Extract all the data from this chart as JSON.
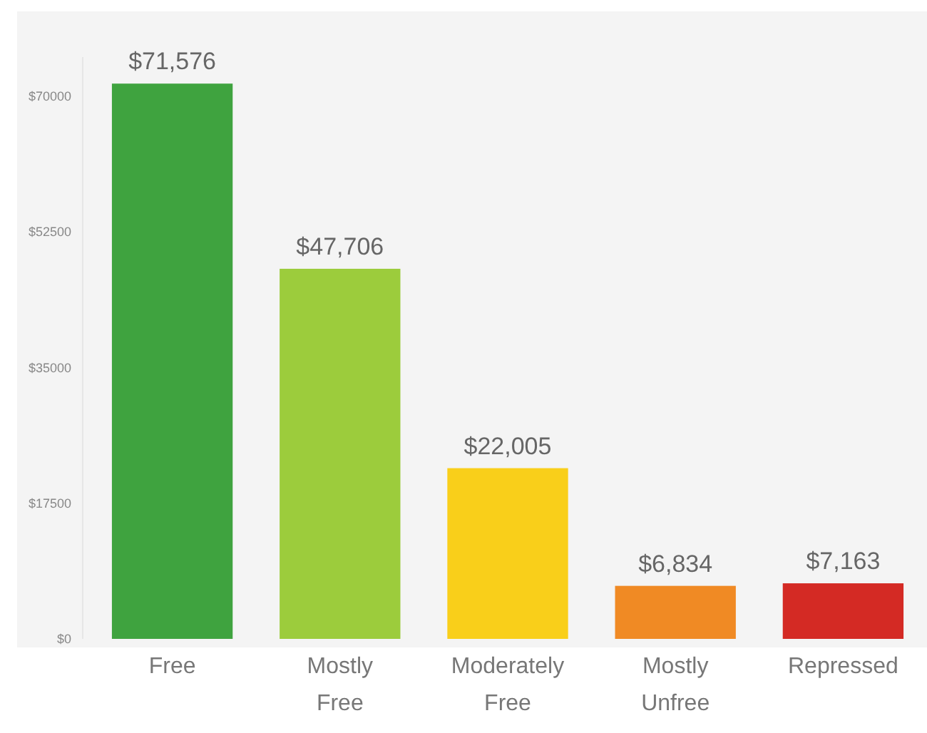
{
  "chart_data": {
    "type": "bar",
    "categories": [
      "Free",
      "Mostly Free",
      "Moderately Free",
      "Mostly Unfree",
      "Repressed"
    ],
    "values": [
      71576,
      47706,
      22005,
      6834,
      7163
    ],
    "colors": [
      "#3fa33f",
      "#9ccc3c",
      "#f9cf1a",
      "#f08a24",
      "#d42a24"
    ],
    "value_labels": [
      "$71,576",
      "$47,706",
      "$22,005",
      "$6,834",
      "$7,163"
    ],
    "ylim": [
      0,
      75000
    ],
    "yticks": [
      {
        "value": 0,
        "label": "$0"
      },
      {
        "value": 17500,
        "label": "$17500"
      },
      {
        "value": 35000,
        "label": "$35000"
      },
      {
        "value": 52500,
        "label": "$52500"
      },
      {
        "value": 70000,
        "label": "$70000"
      }
    ],
    "grid": false
  }
}
